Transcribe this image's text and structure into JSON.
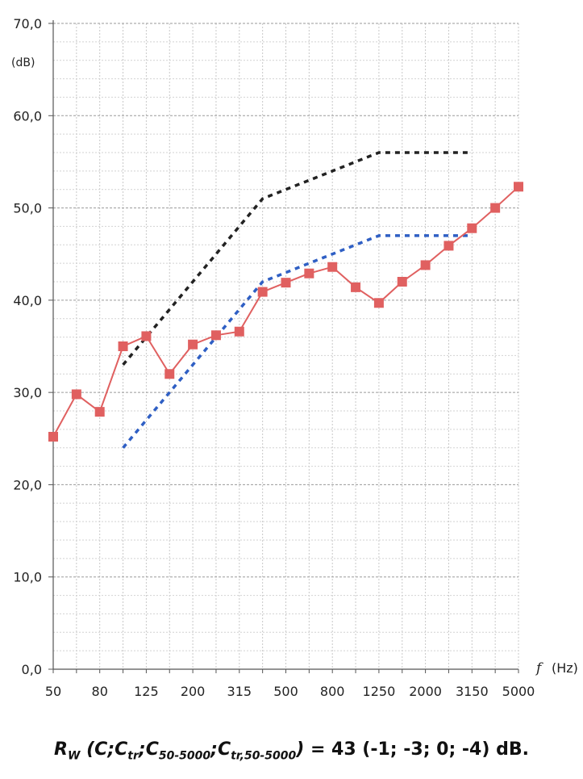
{
  "chart_data": {
    "type": "line",
    "ylabel_unit": "(dB)",
    "xlabel_symbol": "f",
    "xlabel_unit": "(Hz)",
    "ylim": [
      0,
      70
    ],
    "y_ticks": [
      "0,0",
      "10,0",
      "20,0",
      "30,0",
      "40,0",
      "50,0",
      "60,0",
      "70,0"
    ],
    "x_tick_labels": [
      "50",
      "80",
      "125",
      "200",
      "315",
      "500",
      "800",
      "1250",
      "2000",
      "3150",
      "5000"
    ],
    "categories": [
      "50",
      "63",
      "80",
      "100",
      "125",
      "160",
      "200",
      "250",
      "315",
      "400",
      "500",
      "630",
      "800",
      "1000",
      "1250",
      "1600",
      "2000",
      "2500",
      "3150",
      "4000",
      "5000"
    ],
    "grid": true,
    "series": [
      {
        "values": [
          25.2,
          29.8,
          27.9,
          35.0,
          36.1,
          32.0,
          35.2,
          36.2,
          36.6,
          40.9,
          41.9,
          42.9,
          43.6,
          41.4,
          39.7,
          42.0,
          43.8,
          45.9,
          47.8,
          50.0,
          52.3
        ],
        "color": "#e06060",
        "style": "solid",
        "marker": "square"
      },
      {
        "values": [
          null,
          null,
          null,
          33.0,
          36.0,
          39.0,
          42.0,
          45.0,
          48.0,
          51.0,
          52.0,
          53.0,
          54.0,
          55.0,
          56.0,
          56.0,
          56.0,
          56.0,
          56.0,
          null,
          null
        ],
        "color": "#222222",
        "style": "dotted"
      },
      {
        "values": [
          null,
          null,
          null,
          24.0,
          27.0,
          30.0,
          33.0,
          36.0,
          39.0,
          42.0,
          43.0,
          44.0,
          45.0,
          46.0,
          47.0,
          47.0,
          47.0,
          47.0,
          47.0,
          null,
          null
        ],
        "color": "#2f5fc4",
        "style": "dotted"
      }
    ]
  },
  "formula": {
    "r": "R",
    "r_sub": "W",
    "open": " (",
    "c": "C",
    "sep1": ";",
    "ctr": "C",
    "ctr_sub": "tr",
    "sep2": ";",
    "c50": "C",
    "c50_sub": "50-5000",
    "sep3": ";",
    "ctr50": "C",
    "ctr50_sub": "tr,50-5000",
    "close": ")",
    "result": " = 43 (-1; -3; 0; -4) dB."
  }
}
